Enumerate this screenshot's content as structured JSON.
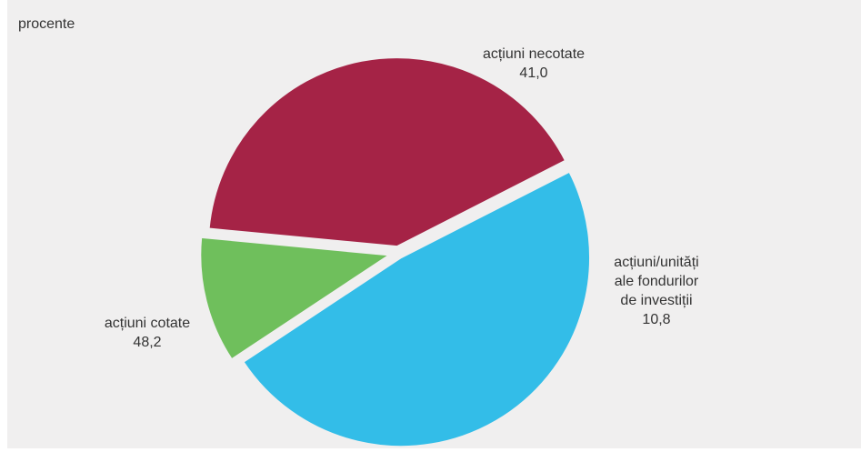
{
  "chart_data": {
    "type": "pie",
    "unit_label": "procente",
    "slices": [
      {
        "label_lines": [
          "acțiuni necotate"
        ],
        "value": 41.0,
        "value_text": "41,0",
        "color": "#a52346"
      },
      {
        "label_lines": [
          "acțiuni/unități",
          "ale fondurilor",
          "de investiții"
        ],
        "value": 10.8,
        "value_text": "10,8",
        "color": "#6fbf5c"
      },
      {
        "label_lines": [
          "acțiuni cotate"
        ],
        "value": 48.2,
        "value_text": "48,2",
        "color": "#33bde8"
      }
    ],
    "legend": "none",
    "labels": "outside slices",
    "exploded": true
  }
}
